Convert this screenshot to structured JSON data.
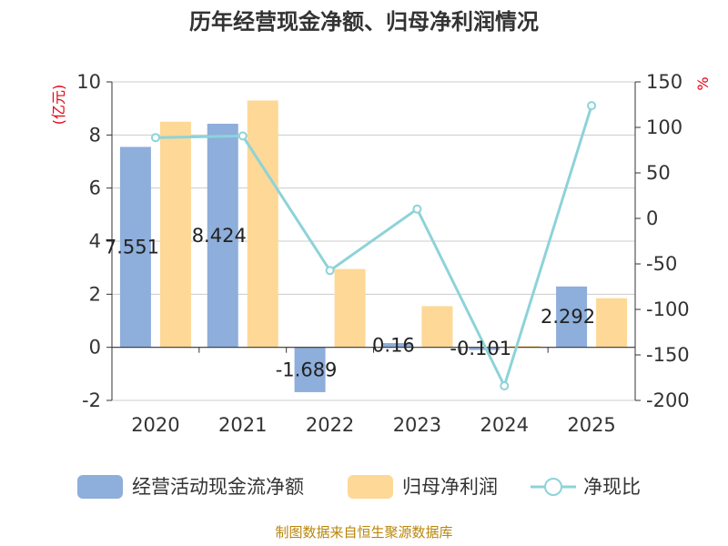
{
  "title": "历年经营现金净额、归母净利润情况",
  "source": "制图数据来自恒生聚源数据库",
  "colors": {
    "cash": "#8eaedb",
    "profit": "#fed896",
    "ratio": "#8dd3d9",
    "grid": "#cccccc",
    "axis": "#333333",
    "unit": "#e3000f",
    "source": "#b8860b"
  },
  "chart_data": {
    "type": "bar",
    "title": "历年经营现金净额、归母净利润情况",
    "categories": [
      "2020",
      "2021",
      "2022",
      "2023",
      "2024",
      "2025"
    ],
    "y_left": {
      "label": "(亿元)",
      "range": [
        -2,
        10
      ],
      "ticks": [
        "-2",
        "0",
        "2",
        "4",
        "6",
        "8",
        "10"
      ]
    },
    "y_right": {
      "label": "%",
      "range": [
        -200,
        150
      ],
      "ticks": [
        "-200",
        "-150",
        "-100",
        "-50",
        "0",
        "50",
        "100",
        "150"
      ]
    },
    "series": [
      {
        "name": "经营活动现金流净额",
        "type": "bar",
        "axis": "left",
        "values": [
          7.551,
          8.424,
          -1.689,
          0.16,
          -0.101,
          2.292
        ],
        "labels": [
          "7.551",
          "8.424",
          "-1.689",
          "0.16",
          "-0.101",
          "2.292"
        ]
      },
      {
        "name": "归母净利润",
        "type": "bar",
        "axis": "left",
        "values": [
          8.5,
          9.3,
          2.95,
          1.55,
          0.05,
          1.85
        ]
      },
      {
        "name": "净现比",
        "type": "line",
        "axis": "right",
        "values": [
          88.8,
          90.6,
          -57.3,
          10.3,
          -184,
          123.9
        ]
      }
    ],
    "legend": [
      "经营活动现金流净额",
      "归母净利润",
      "净现比"
    ]
  }
}
